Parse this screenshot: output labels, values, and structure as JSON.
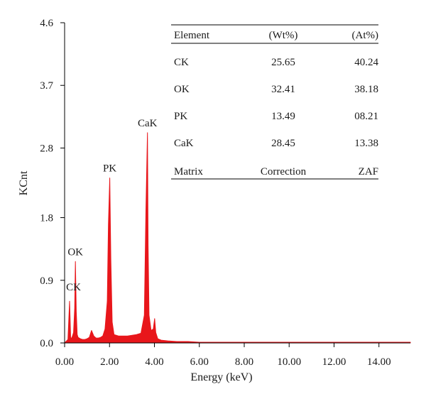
{
  "chart_data": {
    "type": "line",
    "title": "",
    "xlabel": "Energy (keV)",
    "ylabel": "KCnt",
    "xlim": [
      0,
      15.4
    ],
    "ylim": [
      0,
      4.6
    ],
    "x_ticks": [
      0,
      2,
      4,
      6,
      8,
      10,
      12,
      14
    ],
    "x_tick_labels": [
      "0.00",
      "2.00",
      "4.00",
      "6.00",
      "8.00",
      "10.00",
      "12.00",
      "14.00"
    ],
    "y_ticks": [
      0,
      0.9,
      1.8,
      2.8,
      3.7,
      4.6
    ],
    "y_tick_labels": [
      "0.0",
      "0.9",
      "1.8",
      "2.8",
      "3.7",
      "4.6"
    ],
    "grid": false,
    "color": "#e8161b",
    "series": [
      {
        "x": [
          0.0,
          0.15,
          0.22,
          0.27,
          0.3,
          0.35,
          0.4,
          0.45,
          0.48,
          0.52,
          0.56,
          0.6,
          0.7,
          0.8,
          0.9,
          1.0,
          1.1,
          1.2,
          1.3,
          1.4,
          1.5,
          1.6,
          1.7,
          1.8,
          1.9,
          1.95,
          2.01,
          2.06,
          2.12,
          2.2,
          2.4,
          2.6,
          2.8,
          3.0,
          3.2,
          3.4,
          3.55,
          3.62,
          3.69,
          3.72,
          3.76,
          3.85,
          3.95,
          4.01,
          4.06,
          4.15,
          4.3,
          4.6,
          5.0,
          5.5,
          6.0,
          7.0,
          8.0,
          9.0,
          10.0,
          11.0,
          12.0,
          13.0,
          14.0,
          15.0,
          15.4
        ],
        "y": [
          0.0,
          0.05,
          0.6,
          0.08,
          0.06,
          0.1,
          0.15,
          0.5,
          1.17,
          0.45,
          0.12,
          0.08,
          0.06,
          0.05,
          0.05,
          0.06,
          0.08,
          0.18,
          0.1,
          0.07,
          0.07,
          0.08,
          0.1,
          0.2,
          0.6,
          1.7,
          2.37,
          1.2,
          0.3,
          0.12,
          0.1,
          0.1,
          0.1,
          0.11,
          0.12,
          0.14,
          0.4,
          1.9,
          3.02,
          1.4,
          0.4,
          0.18,
          0.2,
          0.35,
          0.15,
          0.06,
          0.04,
          0.03,
          0.02,
          0.02,
          0.01,
          0.01,
          0.01,
          0.01,
          0.01,
          0.01,
          0.01,
          0.01,
          0.01,
          0.01,
          0.01
        ]
      }
    ],
    "annotations": [
      {
        "text": "CK",
        "x": 0.27,
        "y": 0.55
      },
      {
        "text": "OK",
        "x": 0.48,
        "y": 1.17
      },
      {
        "text": "PK",
        "x": 2.01,
        "y": 2.37
      },
      {
        "text": "CaK",
        "x": 3.69,
        "y": 3.02
      }
    ],
    "table": {
      "header": [
        "Element",
        "(Wt%)",
        "(At%)"
      ],
      "rows": [
        [
          "CK",
          "25.65",
          "40.24"
        ],
        [
          "OK",
          "32.41",
          "38.18"
        ],
        [
          "PK",
          "13.49",
          "08.21"
        ],
        [
          "CaK",
          "28.45",
          "13.38"
        ]
      ],
      "footer": [
        "Matrix",
        "Correction",
        "ZAF"
      ]
    }
  }
}
